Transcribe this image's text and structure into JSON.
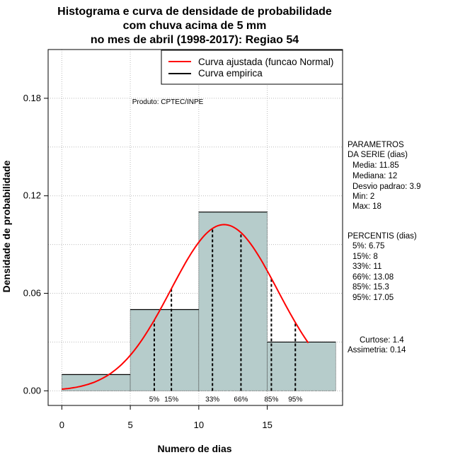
{
  "chart_data": {
    "type": "bar",
    "title_lines": [
      "Histograma e curva de densidade de probabilidade",
      "com chuva acima de 5 mm",
      "no mes de abril (1998-2017): Regiao 54"
    ],
    "xlabel": "Numero de dias",
    "ylabel": "Densidade de probabilidade",
    "xlim": [
      -1,
      20.5
    ],
    "ylim": [
      -0.009,
      0.21
    ],
    "x_ticks": [
      0,
      5,
      10,
      15
    ],
    "x_tick_labels": [
      "0",
      "5",
      "10",
      "15"
    ],
    "y_ticks": [
      0.0,
      0.06,
      0.12,
      0.18
    ],
    "y_tick_labels": [
      "0.00",
      "0.06",
      "0.12",
      "0.18"
    ],
    "grid": true,
    "legend_position": "top-right",
    "bins": [
      {
        "from": 0,
        "to": 5,
        "density": 0.01
      },
      {
        "from": 5,
        "to": 10,
        "density": 0.05
      },
      {
        "from": 10,
        "to": 15,
        "density": 0.11
      },
      {
        "from": 15,
        "to": 20,
        "density": 0.03
      }
    ],
    "empirical_steps": [
      {
        "from": 0,
        "to": 5,
        "density": 0.01
      },
      {
        "from": 5,
        "to": 10,
        "density": 0.05
      },
      {
        "from": 10,
        "to": 15,
        "density": 0.11
      },
      {
        "from": 15,
        "to": 20,
        "density": 0.03
      }
    ],
    "series": [
      {
        "name": "Curva ajustada (funcao Normal)",
        "color": "#ff0000",
        "kind": "normal-fit",
        "mean": 11.85,
        "sd": 3.9,
        "x_range": [
          0,
          18
        ]
      },
      {
        "name": "Curva empirica",
        "color": "#000000",
        "kind": "step"
      }
    ],
    "percentile_lines": [
      {
        "label": "5%",
        "x": 6.75
      },
      {
        "label": "15%",
        "x": 8
      },
      {
        "label": "33%",
        "x": 11
      },
      {
        "label": "66%",
        "x": 13.08
      },
      {
        "label": "85%",
        "x": 15.3
      },
      {
        "label": "95%",
        "x": 17.05
      }
    ],
    "annotation": "Produto: CPTEC/INPE",
    "colors": {
      "bar_fill": "#b6cccb",
      "fit_curve": "#ff0000",
      "grid": "#bbbbbb"
    }
  },
  "side_panel": {
    "params_title_1": "PARAMETROS",
    "params_title_2": "DA SERIE (dias)",
    "params": [
      "Media: 11.85",
      "Mediana: 12",
      "Desvio padrao: 3.9",
      "Min: 2",
      "Max: 18"
    ],
    "percentis_title": "PERCENTIS (dias)",
    "percentis": [
      "5%: 6.75",
      "15%: 8",
      "33%: 11",
      "66%: 13.08",
      "85%: 15.3",
      "95%: 17.05"
    ],
    "kurtosis": "Curtose: 1.4",
    "skewness": "Assimetria: 0.14"
  }
}
